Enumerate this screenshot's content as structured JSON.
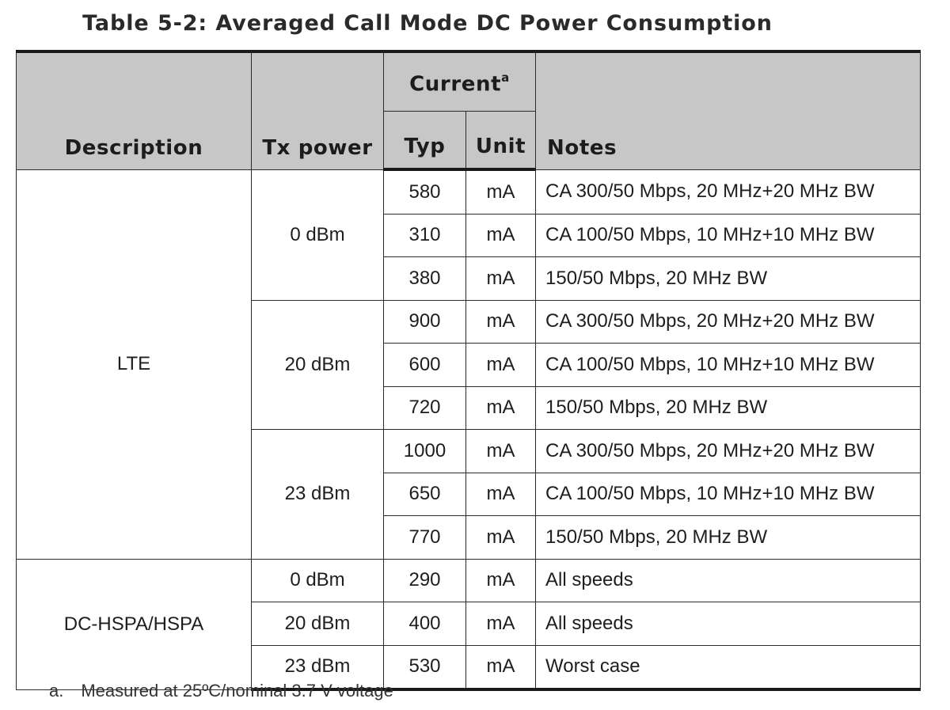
{
  "title": "Table 5-2:  Averaged Call Mode DC Power Consumption",
  "headers": {
    "description": "Description",
    "tx_power": "Tx power",
    "current": "Current",
    "current_sup": "a",
    "typ": "Typ",
    "unit": "Unit",
    "notes": "Notes"
  },
  "rows": [
    {
      "description": "LTE",
      "tx": "0 dBm",
      "typ": "580",
      "unit": "mA",
      "notes": "CA 300/50 Mbps, 20 MHz+20 MHz BW"
    },
    {
      "description": "LTE",
      "tx": "0 dBm",
      "typ": "310",
      "unit": "mA",
      "notes": "CA 100/50 Mbps, 10 MHz+10 MHz BW"
    },
    {
      "description": "LTE",
      "tx": "0 dBm",
      "typ": "380",
      "unit": "mA",
      "notes": "150/50 Mbps, 20 MHz BW"
    },
    {
      "description": "LTE",
      "tx": "20 dBm",
      "typ": "900",
      "unit": "mA",
      "notes": "CA 300/50 Mbps, 20 MHz+20 MHz BW"
    },
    {
      "description": "LTE",
      "tx": "20 dBm",
      "typ": "600",
      "unit": "mA",
      "notes": "CA 100/50 Mbps, 10 MHz+10 MHz BW"
    },
    {
      "description": "LTE",
      "tx": "20 dBm",
      "typ": "720",
      "unit": "mA",
      "notes": "150/50 Mbps, 20 MHz BW"
    },
    {
      "description": "LTE",
      "tx": "23 dBm",
      "typ": "1000",
      "unit": "mA",
      "notes": "CA 300/50 Mbps, 20 MHz+20 MHz BW"
    },
    {
      "description": "LTE",
      "tx": "23 dBm",
      "typ": "650",
      "unit": "mA",
      "notes": "CA 100/50 Mbps, 10 MHz+10 MHz BW"
    },
    {
      "description": "LTE",
      "tx": "23 dBm",
      "typ": "770",
      "unit": "mA",
      "notes": "150/50 Mbps, 20 MHz BW"
    },
    {
      "description": "DC-HSPA/HSPA",
      "tx": "0 dBm",
      "typ": "290",
      "unit": "mA",
      "notes": "All speeds"
    },
    {
      "description": "DC-HSPA/HSPA",
      "tx": "20 dBm",
      "typ": "400",
      "unit": "mA",
      "notes": "All speeds"
    },
    {
      "description": "DC-HSPA/HSPA",
      "tx": "23 dBm",
      "typ": "530",
      "unit": "mA",
      "notes": "Worst case"
    }
  ],
  "footnote": {
    "mark": "a.",
    "text": "Measured at 25ºC/nominal 3.7 V voltage"
  }
}
